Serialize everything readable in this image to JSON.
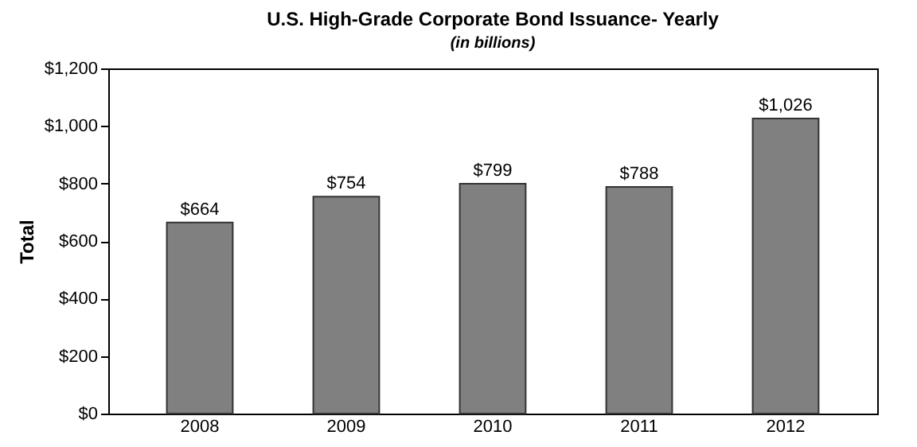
{
  "chart_data": {
    "type": "bar",
    "title": "U.S. High-Grade Corporate Bond Issuance- Yearly",
    "subtitle": "(in billions)",
    "ylabel": "Total",
    "categories": [
      "2008",
      "2009",
      "2010",
      "2011",
      "2012"
    ],
    "values": [
      664,
      754,
      799,
      788,
      1026
    ],
    "value_labels": [
      "$664",
      "$754",
      "$799",
      "$788",
      "$1,026"
    ],
    "color": "#808080",
    "ylim": [
      0,
      1200
    ],
    "yticks": [
      {
        "value": 0,
        "label": "$0"
      },
      {
        "value": 200,
        "label": "$200"
      },
      {
        "value": 400,
        "label": "$400"
      },
      {
        "value": 600,
        "label": "$600"
      },
      {
        "value": 800,
        "label": "$800"
      },
      {
        "value": 1000,
        "label": "$1,000"
      },
      {
        "value": 1200,
        "label": "$1,200"
      }
    ],
    "grid": false
  }
}
